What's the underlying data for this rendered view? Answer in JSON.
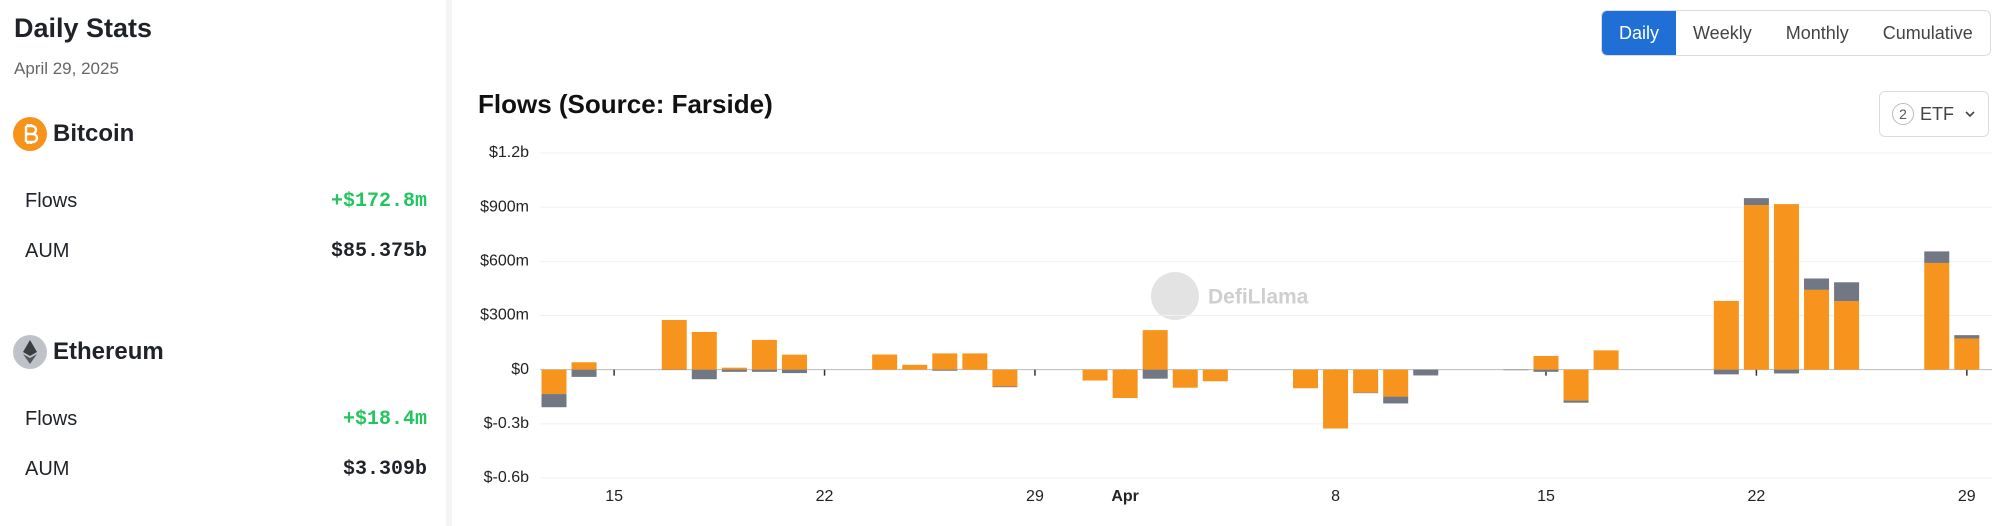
{
  "sidebar": {
    "title": "Daily Stats",
    "date": "April 29, 2025",
    "assets": [
      {
        "name": "Bitcoin",
        "rows": [
          {
            "label": "Flows",
            "value": "+$172.8m"
          },
          {
            "label": "AUM",
            "value": "$85.375b"
          }
        ]
      },
      {
        "name": "Ethereum",
        "rows": [
          {
            "label": "Flows",
            "value": "+$18.4m"
          },
          {
            "label": "AUM",
            "value": "$3.309b"
          }
        ]
      }
    ]
  },
  "tabs": [
    "Daily",
    "Weekly",
    "Monthly",
    "Cumulative"
  ],
  "active_tab": 0,
  "dropdown": {
    "count": 2,
    "label": "ETF"
  },
  "watermark": "DefiLlama",
  "chart_data": {
    "type": "bar",
    "stacked": true,
    "title": "Flows (Source: Farside)",
    "x": [
      "2025-03-13",
      "2025-03-14",
      "2025-03-17",
      "2025-03-18",
      "2025-03-19",
      "2025-03-20",
      "2025-03-21",
      "2025-03-24",
      "2025-03-25",
      "2025-03-26",
      "2025-03-27",
      "2025-03-28",
      "2025-03-31",
      "2025-04-01",
      "2025-04-02",
      "2025-04-03",
      "2025-04-04",
      "2025-04-07",
      "2025-04-08",
      "2025-04-09",
      "2025-04-10",
      "2025-04-11",
      "2025-04-14",
      "2025-04-15",
      "2025-04-16",
      "2025-04-17",
      "2025-04-21",
      "2025-04-22",
      "2025-04-23",
      "2025-04-24",
      "2025-04-25",
      "2025-04-28",
      "2025-04-29"
    ],
    "series": [
      {
        "color": "#f7941d",
        "values": [
          -135,
          41,
          275,
          209,
          11,
          165,
          83,
          84,
          27,
          90,
          90,
          -93,
          -60,
          -157,
          219,
          -100,
          -64,
          -103,
          -326,
          -127,
          -149,
          1,
          1,
          76,
          -171,
          107,
          381,
          912,
          917,
          442,
          380,
          591,
          172.8
        ]
      },
      {
        "color": "#727883",
        "values": [
          -73,
          -40,
          -2,
          -53,
          -12,
          -12,
          -19,
          0,
          0,
          -6,
          0,
          -4,
          0,
          0,
          -50,
          0,
          0,
          0,
          0,
          -3,
          -38,
          -32,
          -3,
          -12,
          -12,
          0,
          -26,
          38,
          -21,
          63,
          104,
          64,
          18.4
        ]
      }
    ],
    "ylim": [
      -600,
      1200
    ],
    "yticks": [
      {
        "value": 1200,
        "label": "$1.2b"
      },
      {
        "value": 900,
        "label": "$900m"
      },
      {
        "value": 600,
        "label": "$600m"
      },
      {
        "value": 300,
        "label": "$300m"
      },
      {
        "value": 0,
        "label": "$0"
      },
      {
        "value": -300,
        "label": "$-0.3b"
      },
      {
        "value": -600,
        "label": "$-0.6b"
      }
    ],
    "xticks": [
      {
        "value": "2025-03-15",
        "label": "15"
      },
      {
        "value": "2025-03-22",
        "label": "22"
      },
      {
        "value": "2025-03-29",
        "label": "29"
      },
      {
        "value": "2025-04-01",
        "label": "Apr"
      },
      {
        "value": "2025-04-08",
        "label": "8"
      },
      {
        "value": "2025-04-15",
        "label": "15"
      },
      {
        "value": "2025-04-22",
        "label": "22"
      },
      {
        "value": "2025-04-29",
        "label": "29"
      }
    ],
    "grid": true
  }
}
